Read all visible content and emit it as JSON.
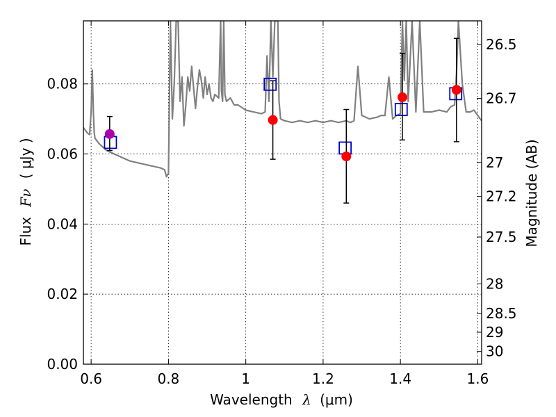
{
  "chart_data": {
    "type": "scatter",
    "xlabel_prefix": "Wavelength",
    "xlabel_symbol": "λ",
    "xlabel_unit": "(μm)",
    "ylabel_prefix": "Flux",
    "ylabel_symbol": "Fν",
    "ylabel_unit": "( μJy )",
    "y2label": "Magnitude (AB)",
    "xlim": [
      0.58,
      1.61
    ],
    "ylim": [
      0.0,
      0.098
    ],
    "xticks": [
      0.6,
      0.8,
      1.0,
      1.2,
      1.4,
      1.6
    ],
    "xtick_labels": [
      "0.6",
      "0.8",
      "1",
      "1.2",
      "1.4",
      "1.6"
    ],
    "yticks": [
      0.0,
      0.02,
      0.04,
      0.06,
      0.08
    ],
    "ytick_labels": [
      "0.00",
      "0.02",
      "0.04",
      "0.06",
      "0.08"
    ],
    "y2ticks": [
      26.5,
      26.7,
      27,
      27.2,
      27.5,
      28,
      28.5,
      29,
      30
    ],
    "y2tick_labels": [
      "26.5",
      "26.7",
      "27",
      "27.2",
      "27.5",
      "28",
      "28.5",
      "29",
      "30"
    ],
    "grid": true,
    "colors": {
      "model": "#808080",
      "observed": "#ff0000",
      "optical": "#aa00aa",
      "synthetic": "#0000cc",
      "errorbar": "#000000"
    },
    "series": [
      {
        "role": "model-spectrum",
        "kind": "line",
        "x": [
          0.58,
          0.59,
          0.596,
          0.6,
          0.603,
          0.606,
          0.608,
          0.61,
          0.62,
          0.64,
          0.66,
          0.68,
          0.7,
          0.72,
          0.74,
          0.76,
          0.78,
          0.79,
          0.795,
          0.8,
          0.805,
          0.81,
          0.815,
          0.82,
          0.825,
          0.83,
          0.835,
          0.84,
          0.845,
          0.85,
          0.855,
          0.86,
          0.865,
          0.87,
          0.875,
          0.88,
          0.885,
          0.89,
          0.895,
          0.9,
          0.905,
          0.91,
          0.915,
          0.92,
          0.93,
          0.935,
          0.937,
          0.94,
          0.943,
          0.946,
          0.95,
          0.96,
          0.97,
          0.98,
          1.0,
          1.02,
          1.04,
          1.05,
          1.055,
          1.06,
          1.065,
          1.07,
          1.075,
          1.08,
          1.083,
          1.086,
          1.09,
          1.1,
          1.12,
          1.14,
          1.16,
          1.18,
          1.2,
          1.22,
          1.24,
          1.26,
          1.27,
          1.28,
          1.29,
          1.3,
          1.32,
          1.34,
          1.35,
          1.36,
          1.37,
          1.38,
          1.39,
          1.4,
          1.405,
          1.41,
          1.415,
          1.42,
          1.43,
          1.44,
          1.45,
          1.46,
          1.48,
          1.5,
          1.52,
          1.53,
          1.54,
          1.545,
          1.55,
          1.56,
          1.57,
          1.58,
          1.59,
          1.6,
          1.61
        ],
        "y": [
          0.0675,
          0.066,
          0.0655,
          0.072,
          0.084,
          0.071,
          0.066,
          0.0645,
          0.063,
          0.061,
          0.06,
          0.059,
          0.058,
          0.0575,
          0.057,
          0.0565,
          0.056,
          0.0555,
          0.0535,
          0.0545,
          0.098,
          0.07,
          0.08,
          0.098,
          0.098,
          0.075,
          0.082,
          0.068,
          0.074,
          0.082,
          0.078,
          0.085,
          0.079,
          0.073,
          0.079,
          0.084,
          0.081,
          0.076,
          0.082,
          0.077,
          0.08,
          0.076,
          0.075,
          0.077,
          0.076,
          0.098,
          0.078,
          0.075,
          0.098,
          0.077,
          0.075,
          0.076,
          0.074,
          0.074,
          0.0725,
          0.072,
          0.0715,
          0.072,
          0.088,
          0.075,
          0.098,
          0.082,
          0.098,
          0.098,
          0.098,
          0.075,
          0.07,
          0.0695,
          0.069,
          0.0695,
          0.069,
          0.0695,
          0.069,
          0.0695,
          0.069,
          0.0695,
          0.069,
          0.0695,
          0.085,
          0.071,
          0.07,
          0.0705,
          0.071,
          0.071,
          0.082,
          0.07,
          0.071,
          0.0715,
          0.098,
          0.081,
          0.098,
          0.075,
          0.098,
          0.072,
          0.098,
          0.072,
          0.072,
          0.0725,
          0.072,
          0.0735,
          0.074,
          0.083,
          0.098,
          0.08,
          0.072,
          0.072,
          0.0725,
          0.071,
          0.0695
        ]
      },
      {
        "role": "synthetic-photometry",
        "kind": "open-square",
        "x": [
          0.65,
          1.063,
          1.257,
          1.402,
          1.543
        ],
        "y": [
          0.0633,
          0.0799,
          0.0617,
          0.0727,
          0.0772
        ]
      },
      {
        "role": "observed-flux",
        "kind": "filled-circle",
        "x": [
          1.07,
          1.26,
          1.405,
          1.545
        ],
        "y": [
          0.0697,
          0.0593,
          0.0762,
          0.0783
        ],
        "yerr_low": [
          0.0585,
          0.046,
          0.064,
          0.0635
        ],
        "yerr_high": [
          0.0809,
          0.0727,
          0.0887,
          0.093
        ]
      },
      {
        "role": "optical-flux",
        "kind": "filled-circle",
        "x": [
          0.648
        ],
        "y": [
          0.0657
        ],
        "yerr_low": [
          0.061
        ],
        "yerr_high": [
          0.0707
        ]
      }
    ]
  }
}
